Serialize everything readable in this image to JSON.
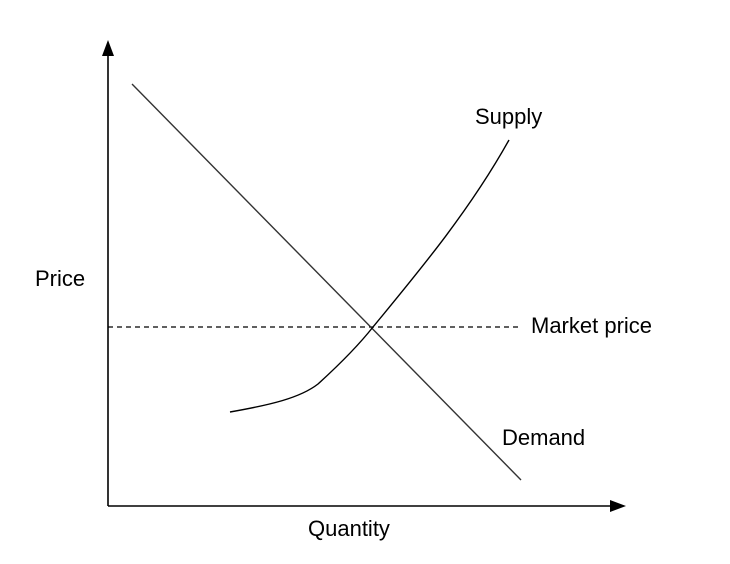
{
  "diagram": {
    "axes": {
      "y_label": "Price",
      "x_label": "Quantity"
    },
    "curves": {
      "supply_label": "Supply",
      "demand_label": "Demand",
      "market_price_label": "Market price"
    },
    "colors": {
      "line": "#000000",
      "demand_line": "#333333",
      "background": "#ffffff"
    }
  }
}
